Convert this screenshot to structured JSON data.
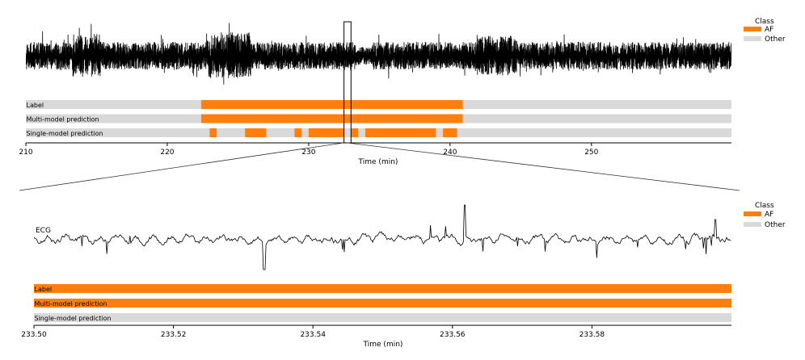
{
  "colors": {
    "af": "#ff7f0e",
    "other": "#d9d9d9",
    "signal": "#000000"
  },
  "legend": {
    "title": "Class",
    "entries": [
      "AF",
      "Other"
    ]
  },
  "chart_data": [
    {
      "type": "ecg_with_class_tracks",
      "xlabel": "Time (min)",
      "xlim": [
        210,
        259.9
      ],
      "xticks": [
        210,
        220,
        230,
        240,
        250
      ],
      "signal_label": "",
      "tracks": [
        {
          "name": "Label",
          "af_intervals": [
            [
              222.4,
              240.9
            ]
          ]
        },
        {
          "name": "Multi-model prediction",
          "af_intervals": [
            [
              222.4,
              240.9
            ]
          ]
        },
        {
          "name": "Single-model prediction",
          "af_intervals": [
            [
              223.0,
              223.5
            ],
            [
              225.5,
              227.0
            ],
            [
              229.0,
              229.5
            ],
            [
              230.0,
              232.5
            ],
            [
              233.0,
              233.5
            ],
            [
              234.0,
              239.0
            ],
            [
              239.5,
              240.5
            ]
          ]
        }
      ],
      "zoom_window": [
        232.5,
        233.0
      ]
    },
    {
      "type": "ecg_with_class_tracks",
      "xlabel": "Time (min)",
      "xlim": [
        233.5,
        233.6
      ],
      "xticks": [
        "233.50",
        "233.52",
        "233.54",
        "233.56",
        "233.58"
      ],
      "signal_label": "ECG",
      "tracks": [
        {
          "name": "Label",
          "af_intervals": [
            [
              233.5,
              233.6
            ]
          ]
        },
        {
          "name": "Multi-model prediction",
          "af_intervals": [
            [
              233.5,
              233.6
            ]
          ]
        },
        {
          "name": "Single-model prediction",
          "af_intervals": []
        }
      ]
    }
  ]
}
